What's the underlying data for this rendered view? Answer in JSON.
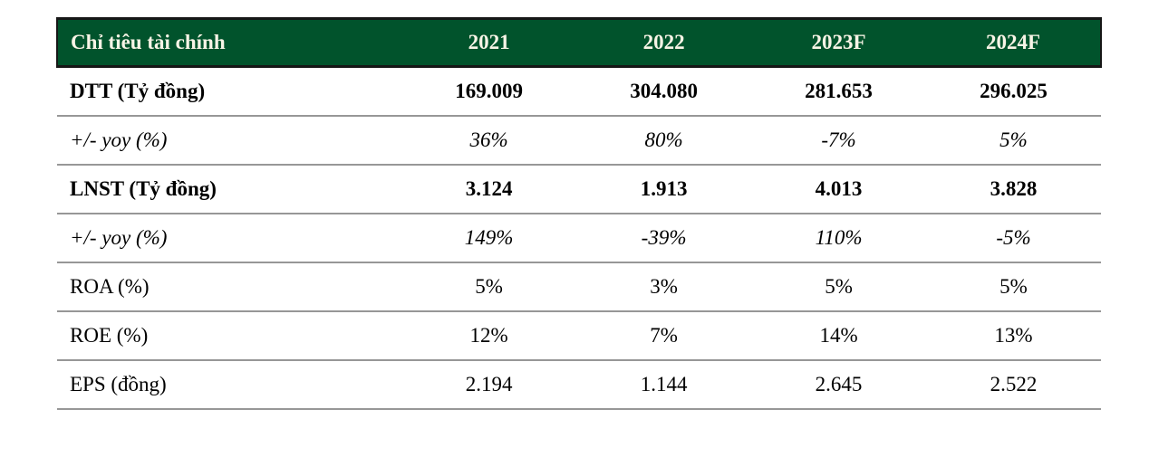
{
  "table": {
    "title": "Chỉ tiêu tài chính",
    "header": [
      "Chỉ tiêu tài chính",
      "2021",
      "2022",
      "2023F",
      "2024F"
    ],
    "rows": [
      {
        "label": "DTT (Tỷ đồng)",
        "style": "bold",
        "values": [
          "169.009",
          "304.080",
          "281.653",
          "296.025"
        ]
      },
      {
        "label": "+/- yoy (%)",
        "style": "italic",
        "values": [
          "36%",
          "80%",
          "-7%",
          "5%"
        ]
      },
      {
        "label": "LNST (Tỷ đồng)",
        "style": "bold",
        "values": [
          "3.124",
          "1.913",
          "4.013",
          "3.828"
        ]
      },
      {
        "label": "+/- yoy (%)",
        "style": "italic",
        "values": [
          "149%",
          "-39%",
          "110%",
          "-5%"
        ]
      },
      {
        "label": "ROA (%)",
        "style": "regular",
        "values": [
          "5%",
          "3%",
          "5%",
          "5%"
        ]
      },
      {
        "label": "ROE (%)",
        "style": "regular",
        "values": [
          "12%",
          "7%",
          "14%",
          "13%"
        ]
      },
      {
        "label": "EPS (đồng)",
        "style": "regular",
        "values": [
          "2.194",
          "1.144",
          "2.645",
          "2.522"
        ]
      }
    ],
    "colors": {
      "header_bg": "#01532c",
      "header_text": "#f8f4e6",
      "header_border": "#161616",
      "row_divider": "#979797",
      "body_text": "#000000"
    }
  }
}
